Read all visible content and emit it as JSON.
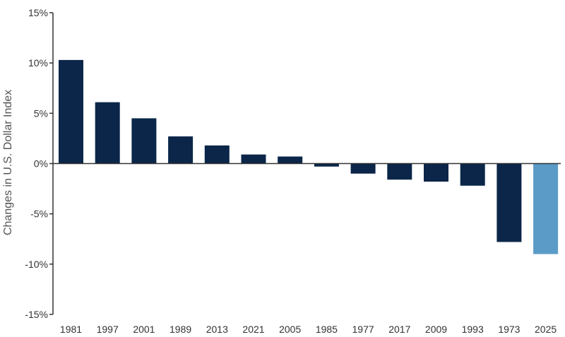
{
  "chart_data": {
    "type": "bar",
    "title": "",
    "xlabel": "",
    "ylabel": "Changes in U.S. Dollar Index",
    "ylim": [
      -15,
      15
    ],
    "yticks": [
      15,
      10,
      5,
      0,
      -5,
      -10,
      -15
    ],
    "ytick_labels": [
      "15%",
      "10%",
      "5%",
      "0%",
      "-5%",
      "-10%",
      "-15%"
    ],
    "categories": [
      "1981",
      "1997",
      "2001",
      "1989",
      "2013",
      "2021",
      "2005",
      "1985",
      "1977",
      "2017",
      "2009",
      "1993",
      "1973",
      "2025"
    ],
    "values": [
      10.3,
      6.1,
      4.5,
      2.7,
      1.8,
      0.9,
      0.7,
      -0.3,
      -1.0,
      -1.6,
      -1.8,
      -2.2,
      -7.8,
      -9.0
    ],
    "colors": {
      "default": "#0b2649",
      "highlight": "#5b9bc8",
      "highlight_category": "2025"
    },
    "grid": false,
    "legend": "none"
  }
}
